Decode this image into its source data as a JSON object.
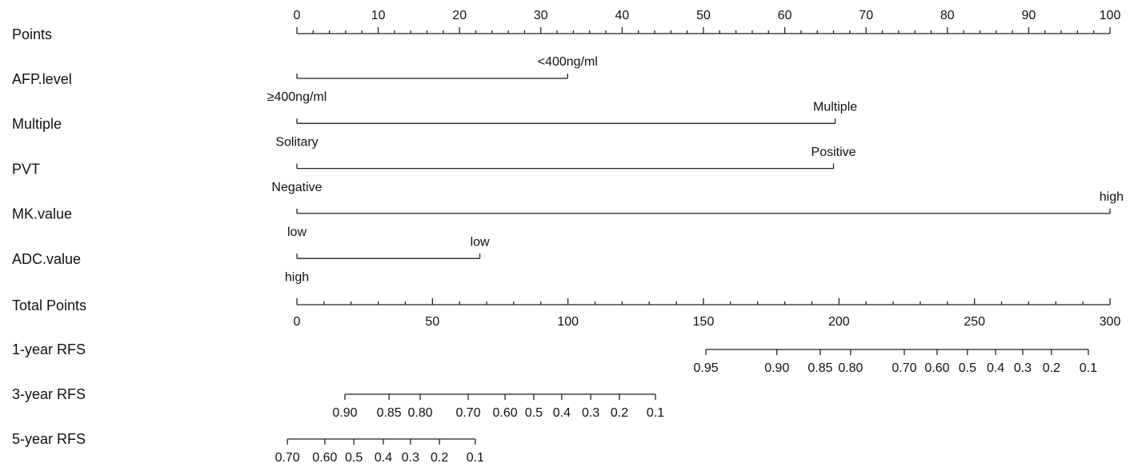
{
  "chart_data": {
    "type": "nomogram",
    "points_axis": {
      "name": "Points",
      "xlim": [
        0,
        100
      ],
      "xticks": [
        0,
        10,
        20,
        30,
        40,
        50,
        60,
        70,
        80,
        90,
        100
      ],
      "minor_ticks": [
        2,
        4,
        6,
        8,
        12,
        14,
        16,
        18,
        22,
        24,
        26,
        28,
        32,
        34,
        36,
        38,
        42,
        44,
        46,
        48,
        52,
        54,
        56,
        58,
        62,
        64,
        66,
        68,
        72,
        74,
        76,
        78,
        82,
        84,
        86,
        88,
        92,
        94,
        96,
        98
      ]
    },
    "variables": [
      {
        "name": "AFP.level",
        "levels": [
          "≥400ng/ml",
          "<400ng/ml"
        ],
        "points": [
          0,
          33.3
        ]
      },
      {
        "name": "Multiple",
        "levels": [
          "Solitary",
          "Multiple"
        ],
        "points": [
          0,
          66.2
        ]
      },
      {
        "name": "PVT",
        "levels": [
          "Negative",
          "Positive"
        ],
        "points": [
          0,
          66.0
        ]
      },
      {
        "name": "MK.value",
        "levels": [
          "low",
          "high"
        ],
        "points": [
          0,
          100
        ]
      },
      {
        "name": "ADC.value",
        "levels": [
          "high",
          "low"
        ],
        "points": [
          0,
          22.5
        ]
      }
    ],
    "total_points_axis": {
      "name": "Total Points",
      "xlim": [
        0,
        300
      ],
      "xticks": [
        0,
        50,
        100,
        150,
        200,
        250,
        300
      ],
      "minor_ticks": [
        10,
        20,
        30,
        40,
        60,
        70,
        80,
        90,
        110,
        120,
        130,
        140,
        160,
        170,
        180,
        190,
        210,
        220,
        230,
        240,
        260,
        270,
        280,
        290
      ]
    },
    "outcomes": [
      {
        "name": "1-year RFS",
        "labels": [
          "0.95",
          "0.90",
          "0.85",
          "0.80",
          "0.70",
          "0.60",
          "0.5",
          "0.4",
          "0.3",
          "0.2",
          "0.1"
        ],
        "total_points": [
          150.9,
          177.1,
          193.1,
          204.3,
          224.1,
          236.2,
          247.4,
          257.8,
          267.8,
          278.4,
          292.0
        ]
      },
      {
        "name": "3-year RFS",
        "labels": [
          "0.90",
          "0.85",
          "0.80",
          "0.70",
          "0.60",
          "0.5",
          "0.4",
          "0.3",
          "0.2",
          "0.1"
        ],
        "total_points": [
          17.7,
          34.0,
          45.5,
          63.2,
          76.8,
          87.4,
          97.7,
          108.4,
          119.0,
          132.3
        ]
      },
      {
        "name": "5-year RFS",
        "labels": [
          "0.70",
          "0.60",
          "0.5",
          "0.4",
          "0.3",
          "0.2",
          "0.1"
        ],
        "total_points": [
          -3.5,
          10.3,
          21.0,
          31.9,
          41.9,
          52.6,
          65.8
        ]
      }
    ]
  }
}
